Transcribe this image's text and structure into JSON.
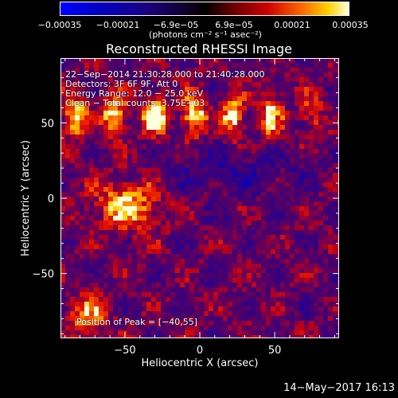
{
  "colorbar": {
    "ticks": [
      "−0.00035",
      "−0.00021",
      "−6.9e−05",
      "6.9e−05",
      "0.00021",
      "0.00035"
    ],
    "unit": "(photons cm⁻² s⁻¹ asec⁻²)"
  },
  "chart_data": {
    "type": "heatmap",
    "title": "Reconstructed RHESSI Image",
    "xlabel": "Heliocentric X (arcsec)",
    "ylabel": "Heliocentric Y (arcsec)",
    "xlim": [
      -93,
      93
    ],
    "ylim": [
      -93,
      93
    ],
    "xticks": [
      -50,
      0,
      50
    ],
    "yticks": [
      -50,
      0,
      50
    ],
    "xtick_labels": [
      "−50",
      "0",
      "50"
    ],
    "ytick_labels": [
      "−50",
      "0",
      "50"
    ],
    "color_range": [
      -0.00035,
      0.00035
    ],
    "annotations": {
      "time": "22−Sep−2014 21:30:28.000 to 21:40:28.000",
      "detectors": "Detectors: 3F 6F 9F, Att 0",
      "energy": "Energy Range: 12.0 − 25.0 keV",
      "clean": "Clean − Total counts: 3.75E+03",
      "peak": "Position of Peak = [−40,55]"
    }
  },
  "footer": {
    "timestamp": "14−May−2017 16:13"
  }
}
